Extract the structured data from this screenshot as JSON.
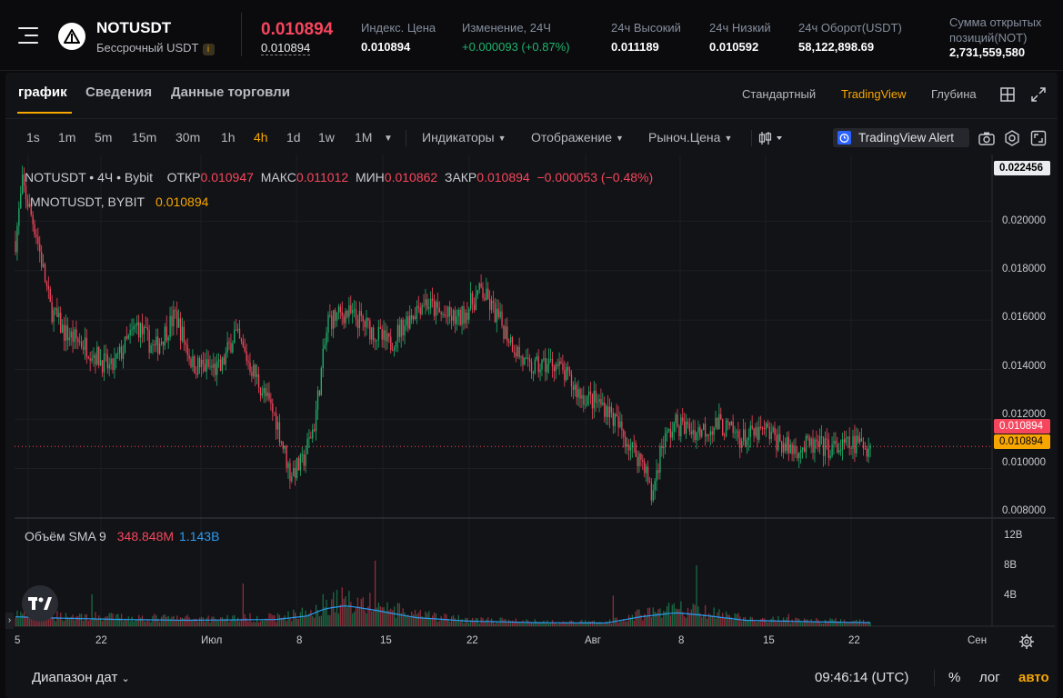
{
  "header": {
    "symbol": "NOTUSDT",
    "subtitle": "Бессрочный USDT",
    "info_icon": "i",
    "last_price": "0.010894",
    "mark_price": "0.010894",
    "stats": [
      {
        "label": "Индекс. Цена",
        "value": "0.010894"
      },
      {
        "label": "Изменение, 24Ч",
        "value": "+0.000093 (+0.87%)"
      },
      {
        "label": "24ч Высокий",
        "value": "0.011189"
      },
      {
        "label": "24ч Низкий",
        "value": "0.010592"
      },
      {
        "label": "24ч Оборот(USDT)",
        "value": "58,122,898.69"
      }
    ],
    "oi_label_1": "Сумма открытых",
    "oi_label_2": "позиций(NOT)",
    "oi_value": "2,731,559,580"
  },
  "tabs": [
    "график",
    "Сведения",
    "Данные торговли"
  ],
  "views": [
    "Стандартный",
    "TradingView",
    "Глубина"
  ],
  "toolbar": {
    "intervals": [
      "1s",
      "1m",
      "5m",
      "15m",
      "30m",
      "1h",
      "4h",
      "1d",
      "1w",
      "1M"
    ],
    "active_interval": "4h",
    "indicators": "Индикаторы",
    "display": "Отображение",
    "price_type": "Рыноч.Цена",
    "alert": "TradingView Alert"
  },
  "legend": {
    "title": "NOTUSDT • 4Ч • Bybit",
    "o_label": "ОТКР",
    "o": "0.010947",
    "h_label": "МАКС",
    "h": "0.011012",
    "l_label": "МИН",
    "l": "0.010862",
    "c_label": "ЗАКР",
    "c": "0.010894",
    "change": "−0.000053 (−0.48%)",
    "mark_label": "MNOTUSDT, BYBIT",
    "mark_value": "0.010894",
    "vol_label": "Объём SMA 9",
    "vol_value": "348.848M",
    "vol_sma": "1.143B"
  },
  "price_axis": {
    "top_tag": "0.022456",
    "ticks": [
      "0.020000",
      "0.018000",
      "0.016000",
      "0.014000",
      "0.012000",
      "0.010000",
      "0.008000"
    ],
    "last_tag": "0.010894",
    "mark_tag": "0.010894"
  },
  "volume_axis": [
    "12B",
    "8B",
    "4B"
  ],
  "time_axis": [
    "5",
    "22",
    "Июл",
    "8",
    "15",
    "22",
    "Авг",
    "8",
    "15",
    "22",
    "Сен"
  ],
  "footer": {
    "range": "Диапазон дат",
    "clock": "09:46:14 (UTC)",
    "percent": "%",
    "log": "лог",
    "auto": "авто"
  },
  "colors": {
    "up": "#20b26c",
    "down": "#f6465d",
    "accent": "#f7a600",
    "sma": "#2b9bf4"
  },
  "chart_data": {
    "type": "candlestick",
    "title": "NOTUSDT • 4Ч • Bybit",
    "ylim": [
      0.008,
      0.0224
    ],
    "anchors": [
      [
        0,
        0.0192
      ],
      [
        4,
        0.0215
      ],
      [
        12,
        0.0195
      ],
      [
        20,
        0.0165
      ],
      [
        28,
        0.0155
      ],
      [
        40,
        0.015
      ],
      [
        55,
        0.014
      ],
      [
        70,
        0.0158
      ],
      [
        80,
        0.0148
      ],
      [
        92,
        0.0162
      ],
      [
        102,
        0.0142
      ],
      [
        118,
        0.014
      ],
      [
        126,
        0.0155
      ],
      [
        135,
        0.0142
      ],
      [
        150,
        0.012
      ],
      [
        158,
        0.0098
      ],
      [
        165,
        0.0102
      ],
      [
        172,
        0.0118
      ],
      [
        180,
        0.016
      ],
      [
        190,
        0.0163
      ],
      [
        198,
        0.016
      ],
      [
        215,
        0.015
      ],
      [
        225,
        0.016
      ],
      [
        235,
        0.0168
      ],
      [
        245,
        0.0162
      ],
      [
        255,
        0.016
      ],
      [
        268,
        0.0172
      ],
      [
        280,
        0.0158
      ],
      [
        295,
        0.014
      ],
      [
        310,
        0.0143
      ],
      [
        325,
        0.013
      ],
      [
        340,
        0.0125
      ],
      [
        355,
        0.0108
      ],
      [
        362,
        0.0102
      ],
      [
        366,
        0.0088
      ],
      [
        372,
        0.011
      ],
      [
        380,
        0.0118
      ],
      [
        392,
        0.0115
      ],
      [
        405,
        0.0118
      ],
      [
        418,
        0.0112
      ],
      [
        432,
        0.0115
      ],
      [
        445,
        0.0108
      ],
      [
        460,
        0.0109
      ],
      [
        472,
        0.0108
      ],
      [
        484,
        0.011
      ],
      [
        492,
        0.0109
      ]
    ],
    "volume_sma_anchors": [
      [
        0,
        1.2
      ],
      [
        20,
        1.05
      ],
      [
        60,
        0.85
      ],
      [
        100,
        0.75
      ],
      [
        150,
        0.85
      ],
      [
        168,
        1.3
      ],
      [
        178,
        2.2
      ],
      [
        190,
        2.6
      ],
      [
        205,
        2.1
      ],
      [
        230,
        1.1
      ],
      [
        260,
        0.65
      ],
      [
        300,
        0.45
      ],
      [
        340,
        0.4
      ],
      [
        360,
        1.2
      ],
      [
        380,
        1.7
      ],
      [
        395,
        1.4
      ],
      [
        420,
        0.75
      ],
      [
        460,
        0.55
      ],
      [
        492,
        0.45
      ]
    ],
    "volume_ylim": [
      0,
      13
    ]
  }
}
